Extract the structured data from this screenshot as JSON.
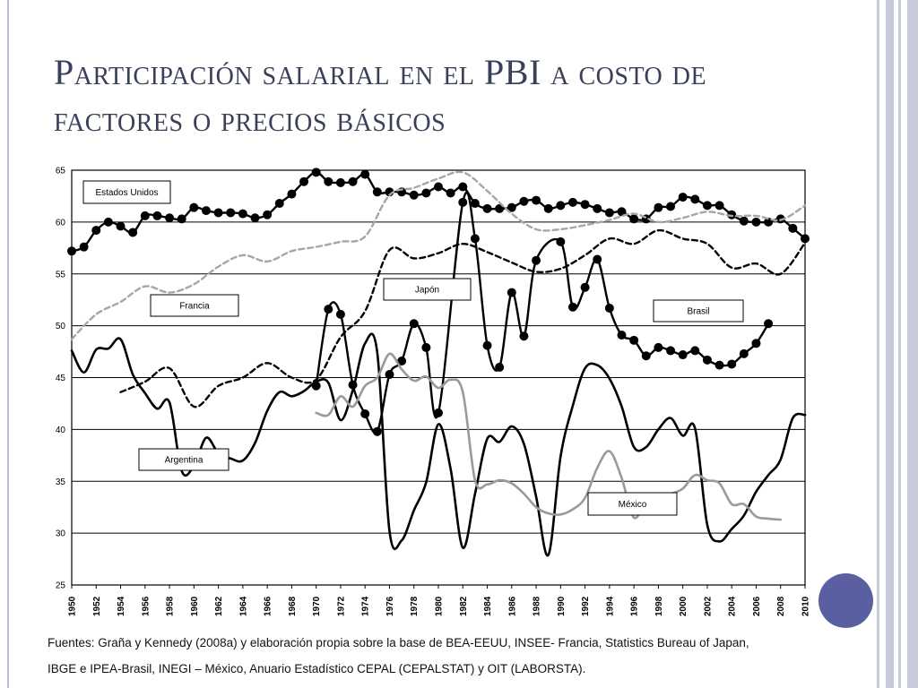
{
  "slide": {
    "title": "Participación salarial en el PBI a costo de factores o precios básicos",
    "source_line1": "Fuentes: Graña y Kennedy (2008a) y elaboración propia sobre la base de BEA-EEUU, INSEE- Francia, Statistics Bureau of Japan,",
    "source_line2": "IBGE e IPEA-Brasil, INEGI – México, Anuario Estadístico CEPAL (CEPALSTAT) y OIT (LABORSTA)."
  },
  "chart_data": {
    "type": "line",
    "title": "",
    "xlabel": "",
    "ylabel": "",
    "xlim": [
      1950,
      2010
    ],
    "ylim": [
      25,
      65
    ],
    "yticks": [
      25,
      30,
      35,
      40,
      45,
      50,
      55,
      60,
      65
    ],
    "xticks": [
      1950,
      1952,
      1954,
      1956,
      1958,
      1960,
      1962,
      1964,
      1966,
      1968,
      1970,
      1972,
      1974,
      1976,
      1978,
      1980,
      1982,
      1984,
      1986,
      1988,
      1990,
      1992,
      1994,
      1996,
      1998,
      2000,
      2002,
      2004,
      2006,
      2008,
      2010
    ],
    "grid": "horizontal",
    "series": [
      {
        "name": "Estados Unidos",
        "style": "black-line-dots",
        "color": "#000000",
        "x": [
          1950,
          1951,
          1952,
          1953,
          1954,
          1955,
          1956,
          1957,
          1958,
          1959,
          1960,
          1961,
          1962,
          1963,
          1964,
          1965,
          1966,
          1967,
          1968,
          1969,
          1970,
          1971,
          1972,
          1973,
          1974,
          1975,
          1976,
          1977,
          1978,
          1979,
          1980,
          1981,
          1982,
          1983,
          1984,
          1985,
          1986,
          1987,
          1988,
          1989,
          1990,
          1991,
          1992,
          1993,
          1994,
          1995,
          1996,
          1997,
          1998,
          1999,
          2000,
          2001,
          2002,
          2003,
          2004,
          2005,
          2006,
          2007,
          2008,
          2009,
          2010
        ],
        "y": [
          57.2,
          57.6,
          59.2,
          60.0,
          59.6,
          59.0,
          60.6,
          60.6,
          60.4,
          60.3,
          61.4,
          61.1,
          60.9,
          60.9,
          60.8,
          60.4,
          60.7,
          61.8,
          62.7,
          63.9,
          64.8,
          63.9,
          63.8,
          63.9,
          64.6,
          62.9,
          62.9,
          62.9,
          62.6,
          62.8,
          63.4,
          62.8,
          63.4,
          61.8,
          61.3,
          61.3,
          61.4,
          62.0,
          62.1,
          61.3,
          61.6,
          61.9,
          61.7,
          61.3,
          60.9,
          61.0,
          60.3,
          60.3,
          61.4,
          61.5,
          62.4,
          62.2,
          61.6,
          61.6,
          60.7,
          60.1,
          60.0,
          60.0,
          60.3,
          59.4,
          58.4
        ]
      },
      {
        "name": "Francia",
        "style": "gray-dashed",
        "color": "#a6a6a6",
        "x": [
          1950,
          1952,
          1954,
          1956,
          1958,
          1960,
          1962,
          1964,
          1966,
          1968,
          1970,
          1972,
          1974,
          1976,
          1978,
          1980,
          1982,
          1984,
          1986,
          1988,
          1990,
          1992,
          1994,
          1996,
          1998,
          2000,
          2002,
          2004,
          2006,
          2008,
          2010
        ],
        "y": [
          48.7,
          51.1,
          52.3,
          53.8,
          53.2,
          54.0,
          55.7,
          56.8,
          56.2,
          57.2,
          57.6,
          58.1,
          58.6,
          62.6,
          63.3,
          64.2,
          64.8,
          63.0,
          60.8,
          59.3,
          59.3,
          59.7,
          60.2,
          60.8,
          60.0,
          60.4,
          61.0,
          60.6,
          60.6,
          60.2,
          61.6
        ]
      },
      {
        "name": "Japón",
        "style": "black-dashed",
        "color": "#000000",
        "x": [
          1954,
          1956,
          1958,
          1960,
          1962,
          1964,
          1966,
          1968,
          1970,
          1972,
          1974,
          1976,
          1978,
          1980,
          1982,
          1984,
          1986,
          1988,
          1990,
          1992,
          1994,
          1996,
          1998,
          2000,
          2002,
          2004,
          2006,
          2008,
          2010
        ],
        "y": [
          43.6,
          44.6,
          45.9,
          42.2,
          44.2,
          45.0,
          46.4,
          45.0,
          44.8,
          48.9,
          51.4,
          57.3,
          56.5,
          57.0,
          57.9,
          57.1,
          56.1,
          55.2,
          55.5,
          56.8,
          58.4,
          57.9,
          59.2,
          58.4,
          57.9,
          55.6,
          56.0,
          55.0,
          58.0
        ]
      },
      {
        "name": "Brasil",
        "style": "black-line-dots",
        "color": "#000000",
        "x": [
          1970,
          1971,
          1972,
          1973,
          1974,
          1975,
          1976,
          1977,
          1978,
          1979,
          1980,
          1982,
          1983,
          1984,
          1985,
          1986,
          1987,
          1988,
          1990,
          1991,
          1992,
          1993,
          1994,
          1995,
          1996,
          1997,
          1998,
          1999,
          2000,
          2001,
          2002,
          2003,
          2004,
          2005,
          2006,
          2007
        ],
        "y": [
          44.2,
          51.6,
          51.1,
          44.3,
          41.5,
          39.8,
          45.3,
          46.6,
          50.2,
          47.9,
          41.6,
          61.9,
          58.4,
          48.1,
          46.0,
          53.2,
          49.0,
          56.3,
          58.1,
          51.8,
          53.7,
          56.4,
          51.7,
          49.1,
          48.6,
          47.1,
          47.9,
          47.6,
          47.2,
          47.6,
          46.7,
          46.2,
          46.3,
          47.3,
          48.3,
          50.2
        ]
      },
      {
        "name": "Argentina",
        "style": "black-line",
        "color": "#000000",
        "x": [
          1950,
          1951,
          1952,
          1953,
          1954,
          1955,
          1956,
          1957,
          1958,
          1959,
          1960,
          1961,
          1962,
          1963,
          1964,
          1965,
          1966,
          1967,
          1968,
          1969,
          1970,
          1971,
          1972,
          1973,
          1974,
          1975,
          1976,
          1977,
          1978,
          1979,
          1980,
          1981,
          1982,
          1983,
          1984,
          1985,
          1986,
          1987,
          1988,
          1989,
          1990,
          1991,
          1992,
          1993,
          1994,
          1995,
          1996,
          1997,
          1998,
          1999,
          2000,
          2001,
          2002,
          2003,
          2004,
          2005,
          2006,
          2007,
          2008,
          2009,
          2010
        ],
        "y": [
          47.6,
          45.5,
          47.7,
          47.8,
          48.7,
          45.3,
          43.5,
          42.0,
          42.6,
          36.0,
          36.5,
          39.2,
          37.7,
          37.2,
          37.0,
          38.7,
          41.8,
          43.6,
          43.2,
          43.7,
          44.6,
          44.5,
          40.9,
          43.8,
          48.3,
          47.4,
          30.2,
          29.3,
          32.2,
          34.9,
          40.5,
          36.2,
          28.6,
          33.8,
          39.1,
          38.8,
          40.3,
          38.6,
          33.5,
          27.9,
          37.4,
          42.3,
          45.9,
          46.2,
          44.9,
          42.2,
          38.3,
          38.3,
          40.0,
          41.1,
          39.4,
          40.1,
          30.8,
          29.2,
          30.4,
          31.7,
          34.0,
          35.6,
          37.1,
          41.1,
          41.4
        ]
      },
      {
        "name": "México",
        "style": "gray-line",
        "color": "#9a9a9a",
        "x": [
          1970,
          1971,
          1972,
          1973,
          1974,
          1975,
          1976,
          1977,
          1978,
          1979,
          1980,
          1981,
          1982,
          1983,
          1984,
          1985,
          1986,
          1987,
          1988,
          1989,
          1990,
          1991,
          1992,
          1993,
          1994,
          1995,
          1996,
          1997,
          1998,
          1999,
          2000,
          2001,
          2002,
          2003,
          2004,
          2005,
          2006,
          2007,
          2008
        ],
        "y": [
          41.6,
          41.4,
          43.2,
          42.2,
          44.2,
          45.0,
          47.3,
          45.8,
          44.7,
          45.1,
          44.0,
          44.8,
          43.6,
          35.1,
          34.7,
          35.1,
          34.8,
          33.8,
          32.5,
          31.9,
          31.8,
          32.3,
          33.4,
          36.3,
          37.9,
          35.3,
          31.5,
          33.1,
          33.6,
          33.8,
          34.3,
          35.6,
          35.1,
          34.8,
          32.8,
          32.8,
          31.6,
          31.4,
          31.3
        ]
      }
    ],
    "legend_labels": [
      {
        "text": "Estados Unidos"
      },
      {
        "text": "Francia"
      },
      {
        "text": "Japón"
      },
      {
        "text": "Brasil"
      },
      {
        "text": "Argentina"
      },
      {
        "text": "México"
      }
    ]
  }
}
